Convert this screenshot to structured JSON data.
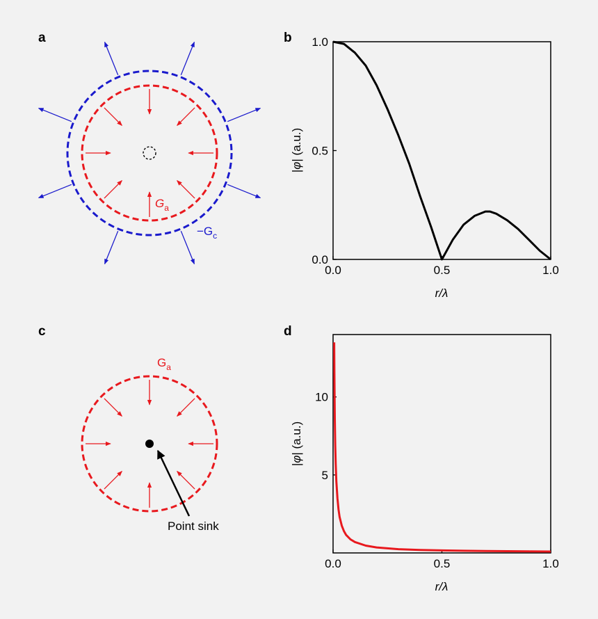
{
  "panels": {
    "a": {
      "letter": "a",
      "inner_label_main": "G",
      "inner_label_sub": "a",
      "outer_label_main": "−G",
      "outer_label_sub": "c"
    },
    "b": {
      "letter": "b"
    },
    "c": {
      "letter": "c",
      "label_main": "G",
      "label_sub": "a",
      "sink_label": "Point sink"
    },
    "d": {
      "letter": "d"
    }
  },
  "colors": {
    "red": "#e8191e",
    "blue": "#1a1acc",
    "black": "#000000",
    "background": "#f2f2f2",
    "plot_bg": "#f2f2f2"
  },
  "chart_data": [
    {
      "id": "b",
      "type": "line",
      "title": "",
      "xlabel_main": "r/",
      "xlabel_greek": "λ",
      "ylabel_main": "|",
      "ylabel_greek": "φ",
      "ylabel_rest": "| (a.u.)",
      "xlim": [
        0,
        1.0
      ],
      "ylim": [
        0,
        1.0
      ],
      "xticks": [
        0,
        0.5,
        1.0
      ],
      "xtick_labels": [
        "0.0",
        "0.5",
        "1.0"
      ],
      "yticks": [
        0,
        0.5,
        1.0
      ],
      "ytick_labels": [
        "0.0",
        "0.5",
        "1.0"
      ],
      "series": [
        {
          "name": "|phi|",
          "color": "#000000",
          "x": [
            0.0,
            0.05,
            0.1,
            0.15,
            0.2,
            0.25,
            0.3,
            0.35,
            0.4,
            0.45,
            0.5,
            0.55,
            0.6,
            0.65,
            0.7,
            0.72,
            0.75,
            0.8,
            0.85,
            0.9,
            0.95,
            1.0
          ],
          "y": [
            1.0,
            0.99,
            0.95,
            0.89,
            0.8,
            0.69,
            0.57,
            0.44,
            0.29,
            0.15,
            0.0,
            0.09,
            0.16,
            0.2,
            0.22,
            0.22,
            0.21,
            0.18,
            0.14,
            0.09,
            0.04,
            0.0
          ]
        }
      ]
    },
    {
      "id": "d",
      "type": "line",
      "title": "",
      "xlabel_main": "r/",
      "xlabel_greek": "λ",
      "ylabel_main": "|",
      "ylabel_greek": "φ",
      "ylabel_rest": "| (a.u.)",
      "xlim": [
        0,
        1.0
      ],
      "ylim": [
        0,
        14
      ],
      "xticks": [
        0,
        0.5,
        1.0
      ],
      "xtick_labels": [
        "0.0",
        "0.5",
        "1.0"
      ],
      "yticks": [
        5,
        10
      ],
      "ytick_labels": [
        "5",
        "10"
      ],
      "series": [
        {
          "name": "|phi|",
          "color": "#e8191e",
          "x": [
            0.005,
            0.006,
            0.008,
            0.01,
            0.012,
            0.015,
            0.02,
            0.025,
            0.03,
            0.04,
            0.05,
            0.06,
            0.08,
            0.1,
            0.15,
            0.2,
            0.3,
            0.4,
            0.5,
            0.6,
            0.7,
            0.8,
            0.9,
            1.0
          ],
          "y": [
            13.5,
            11.5,
            8.6,
            6.9,
            5.7,
            4.6,
            3.5,
            2.8,
            2.3,
            1.75,
            1.4,
            1.15,
            0.87,
            0.7,
            0.47,
            0.35,
            0.24,
            0.19,
            0.16,
            0.14,
            0.12,
            0.11,
            0.1,
            0.09
          ]
        }
      ]
    }
  ]
}
